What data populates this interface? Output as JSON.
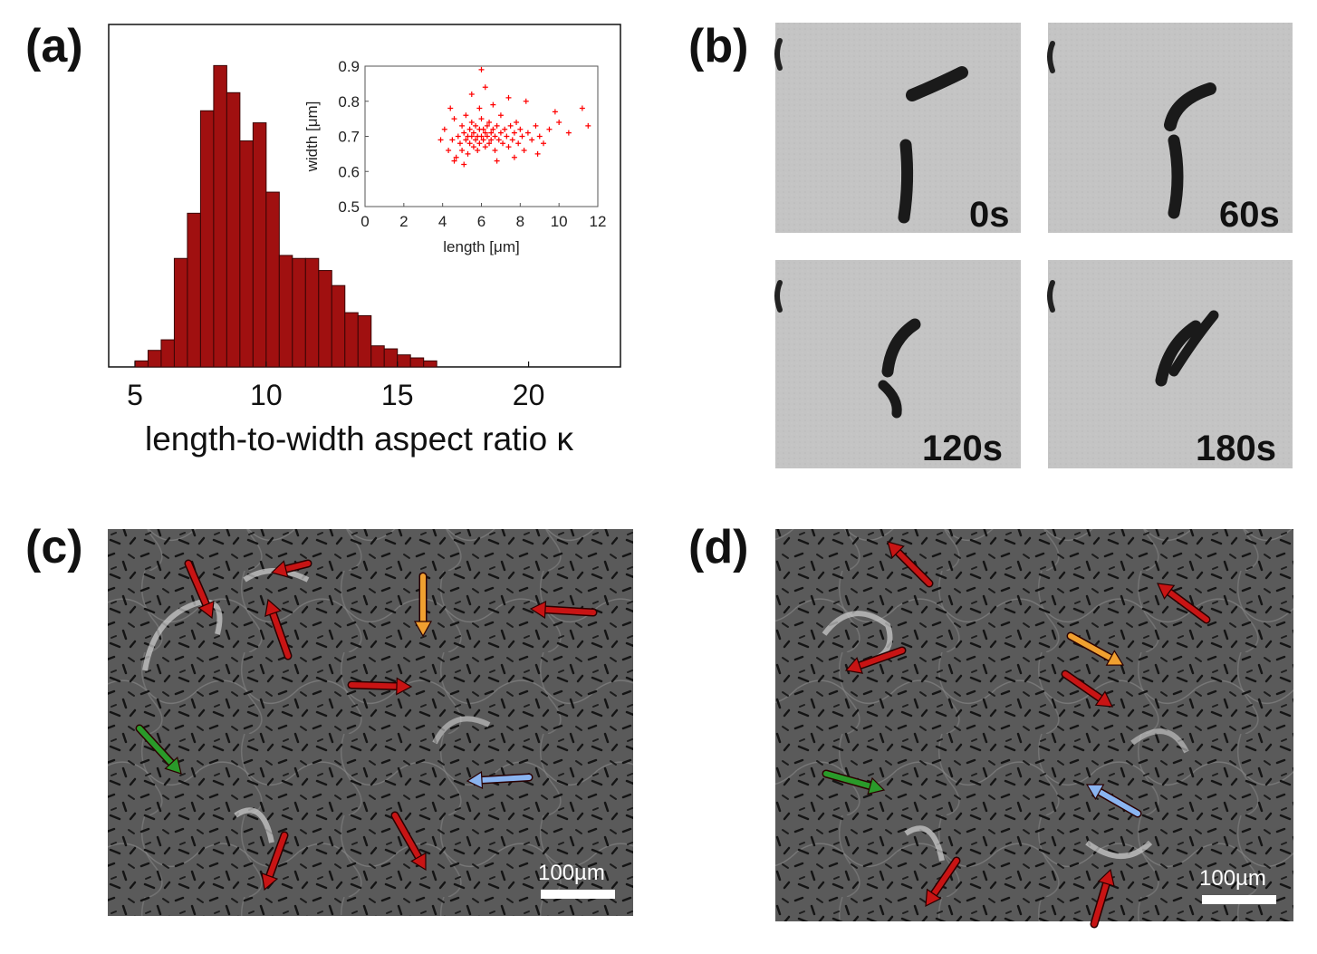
{
  "panels": {
    "a": {
      "label": "(a)"
    },
    "b": {
      "label": "(b)",
      "frames": [
        "0s",
        "60s",
        "120s",
        "180s"
      ]
    },
    "c": {
      "label": "(c)",
      "scalebar": "100µm"
    },
    "d": {
      "label": "(d)",
      "scalebar": "100µm"
    }
  },
  "colors": {
    "bar_fill": "#a01010",
    "scatter": "#ff0000",
    "arrow_red": "#c81414",
    "arrow_orange": "#f0a030",
    "arrow_green": "#2a9a2a",
    "arrow_blue": "#8ab4f0"
  },
  "chart_data": [
    {
      "type": "bar",
      "xlabel": "length-to-width aspect ratio κ",
      "ylabel": "",
      "xlim": [
        4,
        23.5
      ],
      "xticks": [
        5,
        10,
        15,
        20
      ],
      "grid": false,
      "bin_width": 0.5,
      "bin_starts": [
        5,
        5.5,
        6,
        6.5,
        7,
        7.5,
        8,
        8.5,
        9,
        9.5,
        10,
        10.5,
        11,
        11.5,
        12,
        12.5,
        13,
        13.5,
        14,
        14.5,
        15,
        15.5,
        16
      ],
      "values": [
        0.02,
        0.055,
        0.09,
        0.36,
        0.51,
        0.85,
        1.0,
        0.91,
        0.75,
        0.81,
        0.58,
        0.37,
        0.36,
        0.36,
        0.32,
        0.27,
        0.18,
        0.17,
        0.07,
        0.06,
        0.04,
        0.03,
        0.02
      ]
    },
    {
      "type": "scatter",
      "title": "",
      "xlabel": "length [μm]",
      "ylabel": "width [μm]",
      "xlim": [
        0,
        12
      ],
      "ylim": [
        0.5,
        0.9
      ],
      "xticks": [
        0,
        2,
        4,
        6,
        8,
        10,
        12
      ],
      "yticks": [
        0.5,
        0.6,
        0.7,
        0.8,
        0.9
      ],
      "marker": "+",
      "points": [
        [
          4.1,
          0.72
        ],
        [
          4.3,
          0.66
        ],
        [
          4.5,
          0.69
        ],
        [
          4.6,
          0.75
        ],
        [
          4.7,
          0.64
        ],
        [
          4.8,
          0.7
        ],
        [
          4.9,
          0.68
        ],
        [
          5.0,
          0.73
        ],
        [
          5.0,
          0.66
        ],
        [
          5.1,
          0.71
        ],
        [
          5.2,
          0.69
        ],
        [
          5.2,
          0.76
        ],
        [
          5.3,
          0.65
        ],
        [
          5.3,
          0.7
        ],
        [
          5.4,
          0.72
        ],
        [
          5.4,
          0.68
        ],
        [
          5.5,
          0.7
        ],
        [
          5.5,
          0.74
        ],
        [
          5.6,
          0.67
        ],
        [
          5.6,
          0.71
        ],
        [
          5.7,
          0.69
        ],
        [
          5.7,
          0.73
        ],
        [
          5.8,
          0.7
        ],
        [
          5.8,
          0.66
        ],
        [
          5.9,
          0.72
        ],
        [
          5.9,
          0.68
        ],
        [
          6.0,
          0.7
        ],
        [
          6.0,
          0.75
        ],
        [
          6.1,
          0.69
        ],
        [
          6.1,
          0.72
        ],
        [
          6.2,
          0.71
        ],
        [
          6.2,
          0.67
        ],
        [
          6.3,
          0.73
        ],
        [
          6.3,
          0.7
        ],
        [
          6.4,
          0.68
        ],
        [
          6.4,
          0.74
        ],
        [
          6.5,
          0.71
        ],
        [
          6.5,
          0.69
        ],
        [
          6.6,
          0.72
        ],
        [
          6.7,
          0.7
        ],
        [
          6.7,
          0.66
        ],
        [
          6.8,
          0.73
        ],
        [
          6.9,
          0.69
        ],
        [
          7.0,
          0.71
        ],
        [
          7.0,
          0.76
        ],
        [
          7.1,
          0.68
        ],
        [
          7.2,
          0.72
        ],
        [
          7.3,
          0.7
        ],
        [
          7.4,
          0.67
        ],
        [
          7.5,
          0.73
        ],
        [
          7.6,
          0.69
        ],
        [
          7.7,
          0.71
        ],
        [
          7.8,
          0.74
        ],
        [
          7.9,
          0.68
        ],
        [
          8.0,
          0.72
        ],
        [
          8.1,
          0.7
        ],
        [
          8.2,
          0.66
        ],
        [
          8.4,
          0.71
        ],
        [
          8.6,
          0.69
        ],
        [
          8.8,
          0.73
        ],
        [
          9.0,
          0.7
        ],
        [
          9.2,
          0.68
        ],
        [
          9.5,
          0.72
        ],
        [
          10.0,
          0.74
        ],
        [
          10.5,
          0.71
        ],
        [
          11.2,
          0.78
        ],
        [
          11.5,
          0.73
        ],
        [
          5.5,
          0.82
        ],
        [
          6.2,
          0.84
        ],
        [
          7.4,
          0.81
        ],
        [
          8.3,
          0.8
        ],
        [
          6.0,
          0.89
        ],
        [
          4.6,
          0.63
        ],
        [
          5.1,
          0.62
        ],
        [
          6.8,
          0.63
        ],
        [
          7.7,
          0.64
        ],
        [
          5.9,
          0.78
        ],
        [
          6.6,
          0.79
        ],
        [
          4.4,
          0.78
        ],
        [
          9.8,
          0.77
        ],
        [
          8.9,
          0.65
        ],
        [
          3.9,
          0.69
        ]
      ]
    }
  ]
}
